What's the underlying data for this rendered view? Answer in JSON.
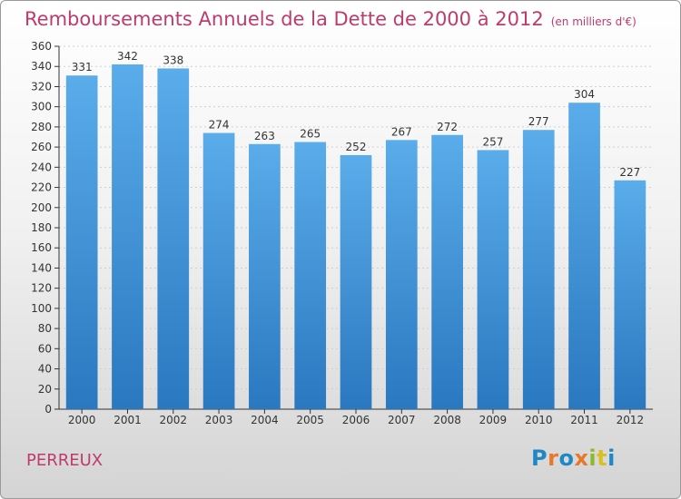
{
  "title": "Remboursements Annuels de la Dette de 2000 à 2012",
  "subtitle": "(en milliers d'€)",
  "location": "PERREUX",
  "logo_text": "Proxiti",
  "colors": {
    "bar": "#3a96dc",
    "title": "#c03a6b",
    "axis": "#333333",
    "grid": "#cfcfcf"
  },
  "chart_data": {
    "type": "bar",
    "categories": [
      "2000",
      "2001",
      "2002",
      "2003",
      "2004",
      "2005",
      "2006",
      "2007",
      "2008",
      "2009",
      "2010",
      "2011",
      "2012"
    ],
    "values": [
      331,
      342,
      338,
      274,
      263,
      265,
      252,
      267,
      272,
      257,
      277,
      304,
      227
    ],
    "title": "Remboursements Annuels de la Dette de 2000 à 2012",
    "xlabel": "",
    "ylabel": "",
    "ylim": [
      0,
      360
    ],
    "yticks": [
      0,
      20,
      40,
      60,
      80,
      100,
      120,
      140,
      160,
      180,
      200,
      220,
      240,
      260,
      280,
      300,
      320,
      340,
      360
    ],
    "grid": true,
    "data_labels": true
  }
}
